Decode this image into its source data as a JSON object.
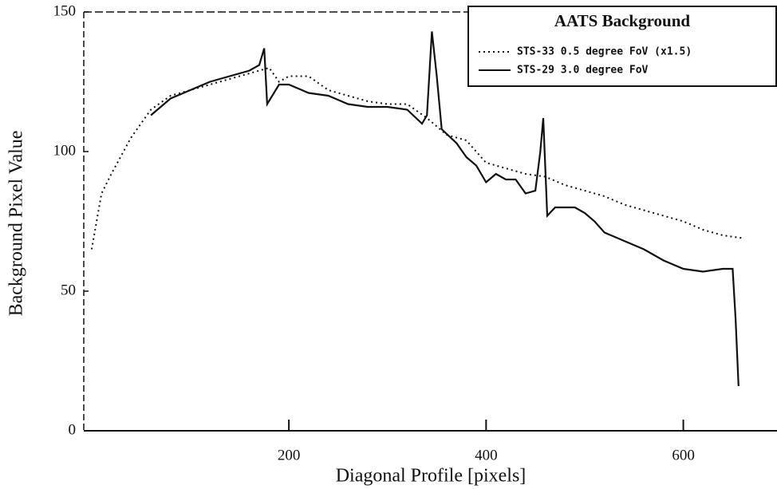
{
  "chart_data": {
    "type": "line",
    "xlabel": "Diagonal Profile [pixels]",
    "ylabel": "Background Pixel Value",
    "legend_title": "AATS Background",
    "xlim": [
      -8,
      695
    ],
    "ylim": [
      0,
      150
    ],
    "xticks": [
      200,
      400,
      600
    ],
    "yticks": [
      0,
      50,
      100,
      150
    ],
    "legend": "upper right",
    "series": [
      {
        "name": "STS-33 0.5 degree FoV (x1.5)",
        "color": "#111111",
        "linestyle": "dotted",
        "x": [
          0,
          10,
          20,
          40,
          60,
          80,
          100,
          120,
          140,
          160,
          180,
          190,
          200,
          220,
          240,
          260,
          280,
          300,
          320,
          340,
          360,
          380,
          400,
          420,
          440,
          460,
          480,
          500,
          520,
          540,
          560,
          580,
          600,
          620,
          640,
          660
        ],
        "values": [
          65,
          85,
          92,
          105,
          115,
          120,
          122,
          124,
          126,
          128,
          130,
          125,
          127,
          127,
          122,
          120,
          118,
          117,
          117,
          112,
          106,
          104,
          96,
          94,
          92,
          91,
          88,
          86,
          84,
          81,
          79,
          77,
          75,
          72,
          70,
          69
        ]
      },
      {
        "name": "STS-29 3.0 degree FoV",
        "color": "#111111",
        "linestyle": "solid",
        "x": [
          60,
          80,
          100,
          120,
          140,
          160,
          170,
          175,
          178,
          190,
          200,
          220,
          240,
          260,
          280,
          300,
          320,
          335,
          340,
          345,
          350,
          355,
          370,
          380,
          390,
          400,
          410,
          420,
          430,
          440,
          450,
          455,
          458,
          462,
          470,
          490,
          500,
          510,
          520,
          540,
          560,
          580,
          600,
          620,
          640,
          650,
          653,
          656
        ],
        "values": [
          113,
          119,
          122,
          125,
          127,
          129,
          131,
          137,
          117,
          124,
          124,
          121,
          120,
          117,
          116,
          116,
          115,
          110,
          113,
          143,
          127,
          108,
          103,
          98,
          95,
          89,
          92,
          90,
          90,
          85,
          86,
          100,
          112,
          77,
          80,
          80,
          78,
          75,
          71,
          68,
          65,
          61,
          58,
          57,
          58,
          58,
          40,
          16
        ]
      }
    ]
  }
}
